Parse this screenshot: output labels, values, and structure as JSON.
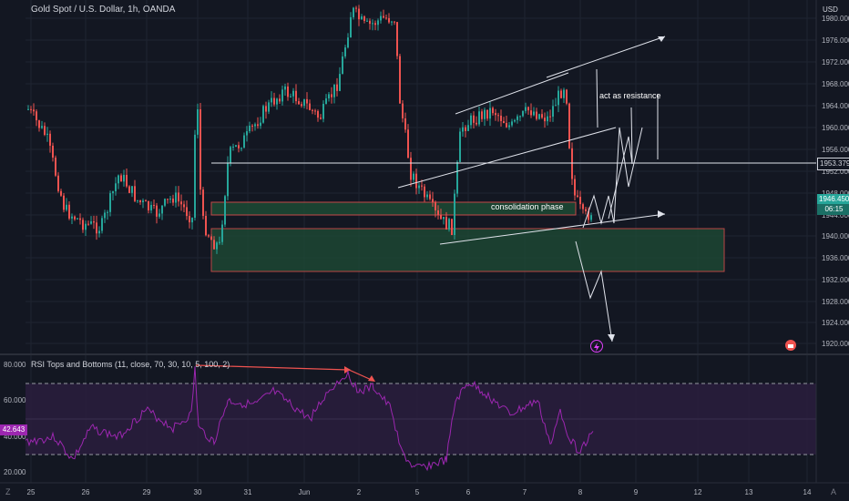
{
  "header": {
    "symbol_title": "Gold Spot / U.S. Dollar, 1h, OANDA",
    "currency": "USD"
  },
  "price_axis": {
    "ticks": [
      "1980.000",
      "1976.000",
      "1972.000",
      "1968.000",
      "1964.000",
      "1960.000",
      "1956.000",
      "1952.000",
      "1948.000",
      "1944.000",
      "1940.000",
      "1936.000",
      "1932.000",
      "1928.000",
      "1924.000",
      "1920.000"
    ],
    "current_price": "1946.450",
    "countdown": "06:15",
    "line_label": "1953.379"
  },
  "time_axis": {
    "ticks": [
      "25",
      "26",
      "29",
      "30",
      "31",
      "Jun",
      "2",
      "5",
      "6",
      "7",
      "8",
      "9",
      "12",
      "13",
      "14"
    ]
  },
  "annotations": {
    "resistance_text": "act as resistance",
    "consolidation_text": "consolidation phase"
  },
  "rsi": {
    "title": "RSI Tops and Bottoms (11, close, 70, 30, 10, 5, 100, 2)",
    "ticks": [
      "80.000",
      "60.000",
      "40.000",
      "20.000"
    ],
    "current_value": "42.643"
  },
  "colors": {
    "background": "#131722",
    "up_candle": "#26a69a",
    "down_candle": "#ef5350",
    "rsi_line": "#9c27b0",
    "zone_fill": "#1e4d35"
  },
  "icons": {
    "lightning": "lightning-icon",
    "flag": "flag-icon",
    "settings": "gear-icon"
  }
}
